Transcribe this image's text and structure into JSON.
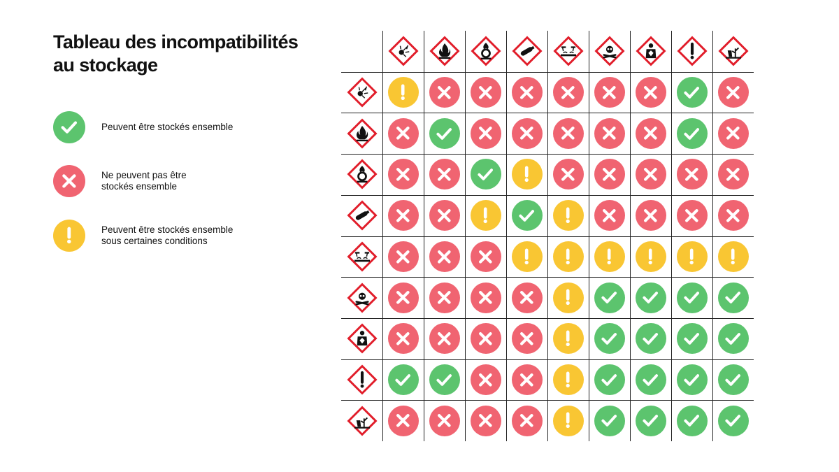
{
  "title": {
    "line1": "Tableau des incompatibilités",
    "line2": "au stockage"
  },
  "colors": {
    "ok": "#5cc46e",
    "no": "#f06471",
    "cond": "#f9c633",
    "pictogram_red": "#e11d2a",
    "grid": "#222222"
  },
  "legend": [
    {
      "status": "ok",
      "icon": "check-icon",
      "lines": [
        "Peuvent être stockés ensemble"
      ]
    },
    {
      "status": "no",
      "icon": "cross-icon",
      "lines": [
        "Ne peuvent pas être",
        "stockés ensemble"
      ]
    },
    {
      "status": "cond",
      "icon": "exclamation-icon",
      "lines": [
        "Peuvent être stockés ensemble",
        "sous certaines conditions"
      ]
    }
  ],
  "pictograms": [
    "exploding-bomb-icon",
    "flame-icon",
    "flame-over-circle-icon",
    "gas-cylinder-icon",
    "corrosion-icon",
    "skull-crossbones-icon",
    "health-hazard-icon",
    "exclamation-mark-icon",
    "environment-icon"
  ],
  "matrix": [
    [
      "cond",
      "no",
      "no",
      "no",
      "no",
      "no",
      "no",
      "ok",
      "no"
    ],
    [
      "no",
      "ok",
      "no",
      "no",
      "no",
      "no",
      "no",
      "ok",
      "no"
    ],
    [
      "no",
      "no",
      "ok",
      "cond",
      "no",
      "no",
      "no",
      "no",
      "no"
    ],
    [
      "no",
      "no",
      "cond",
      "ok",
      "cond",
      "no",
      "no",
      "no",
      "no"
    ],
    [
      "no",
      "no",
      "no",
      "cond",
      "cond",
      "cond",
      "cond",
      "cond",
      "cond"
    ],
    [
      "no",
      "no",
      "no",
      "no",
      "cond",
      "ok",
      "ok",
      "ok",
      "ok"
    ],
    [
      "no",
      "no",
      "no",
      "no",
      "cond",
      "ok",
      "ok",
      "ok",
      "ok"
    ],
    [
      "ok",
      "ok",
      "no",
      "no",
      "cond",
      "ok",
      "ok",
      "ok",
      "ok"
    ],
    [
      "no",
      "no",
      "no",
      "no",
      "cond",
      "ok",
      "ok",
      "ok",
      "ok"
    ]
  ]
}
